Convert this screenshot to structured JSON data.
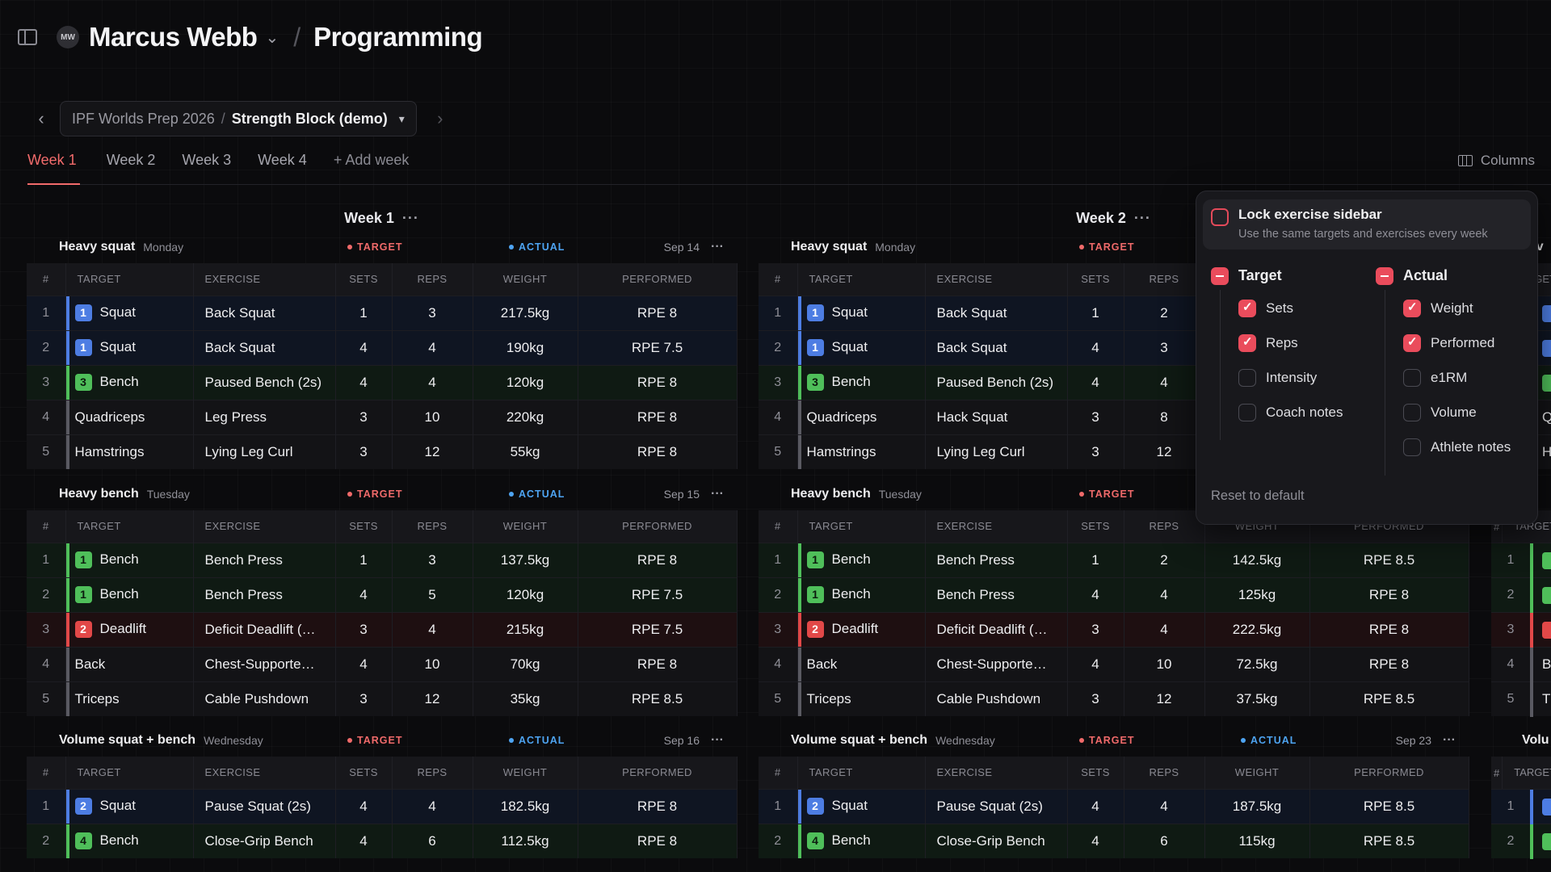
{
  "header": {
    "avatar_initials": "MW",
    "athlete_name": "Marcus Webb",
    "page_title": "Programming"
  },
  "block_selector": {
    "program": "IPF Worlds Prep 2026",
    "separator": "/",
    "block": "Strength Block (demo)"
  },
  "tabs": [
    {
      "label": "Week 1",
      "active": true
    },
    {
      "label": "Week 2",
      "active": false
    },
    {
      "label": "Week 3",
      "active": false
    },
    {
      "label": "Week 4",
      "active": false
    }
  ],
  "add_week_label": "+ Add week",
  "columns_label": "Columns",
  "table_headers": [
    "#",
    "TARGET",
    "EXERCISE",
    "SETS",
    "REPS",
    "WEIGHT",
    "PERFORMED"
  ],
  "pill_labels": {
    "target": "TARGET",
    "actual": "ACTUAL"
  },
  "weeks": [
    {
      "title": "Week 1",
      "sessions": [
        {
          "name": "Heavy squat",
          "day": "Monday",
          "date": "Sep 14",
          "rows": [
            {
              "n": "1",
              "color": "blue",
              "badge": "1",
              "target": "Squat",
              "exercise": "Back Squat",
              "sets": "1",
              "reps": "3",
              "weight": "217.5kg",
              "performed": "RPE 8"
            },
            {
              "n": "2",
              "color": "blue",
              "badge": "1",
              "target": "Squat",
              "exercise": "Back Squat",
              "sets": "4",
              "reps": "4",
              "weight": "190kg",
              "performed": "RPE 7.5"
            },
            {
              "n": "3",
              "color": "green",
              "badge": "3",
              "target": "Bench",
              "exercise": "Paused Bench (2s)",
              "sets": "4",
              "reps": "4",
              "weight": "120kg",
              "performed": "RPE 8"
            },
            {
              "n": "4",
              "color": "plain",
              "badge": "",
              "target": "Quadriceps",
              "exercise": "Leg Press",
              "sets": "3",
              "reps": "10",
              "weight": "220kg",
              "performed": "RPE 8"
            },
            {
              "n": "5",
              "color": "plain",
              "badge": "",
              "target": "Hamstrings",
              "exercise": "Lying Leg Curl",
              "sets": "3",
              "reps": "12",
              "weight": "55kg",
              "performed": "RPE 8"
            }
          ]
        },
        {
          "name": "Heavy bench",
          "day": "Tuesday",
          "date": "Sep 15",
          "rows": [
            {
              "n": "1",
              "color": "green",
              "badge": "1",
              "target": "Bench",
              "exercise": "Bench Press",
              "sets": "1",
              "reps": "3",
              "weight": "137.5kg",
              "performed": "RPE 8"
            },
            {
              "n": "2",
              "color": "green",
              "badge": "1",
              "target": "Bench",
              "exercise": "Bench Press",
              "sets": "4",
              "reps": "5",
              "weight": "120kg",
              "performed": "RPE 7.5"
            },
            {
              "n": "3",
              "color": "red",
              "badge": "2",
              "target": "Deadlift",
              "exercise": "Deficit Deadlift (…",
              "sets": "3",
              "reps": "4",
              "weight": "215kg",
              "performed": "RPE 7.5"
            },
            {
              "n": "4",
              "color": "plain",
              "badge": "",
              "target": "Back",
              "exercise": "Chest-Supporte…",
              "sets": "4",
              "reps": "10",
              "weight": "70kg",
              "performed": "RPE 8"
            },
            {
              "n": "5",
              "color": "plain",
              "badge": "",
              "target": "Triceps",
              "exercise": "Cable Pushdown",
              "sets": "3",
              "reps": "12",
              "weight": "35kg",
              "performed": "RPE 8.5"
            }
          ]
        },
        {
          "name": "Volume squat + bench",
          "day": "Wednesday",
          "date": "Sep 16",
          "rows": [
            {
              "n": "1",
              "color": "blue",
              "badge": "2",
              "target": "Squat",
              "exercise": "Pause Squat (2s)",
              "sets": "4",
              "reps": "4",
              "weight": "182.5kg",
              "performed": "RPE 8"
            },
            {
              "n": "2",
              "color": "green",
              "badge": "4",
              "target": "Bench",
              "exercise": "Close-Grip Bench",
              "sets": "4",
              "reps": "6",
              "weight": "112.5kg",
              "performed": "RPE 8"
            }
          ]
        }
      ]
    },
    {
      "title": "Week 2",
      "sessions": [
        {
          "name": "Heavy squat",
          "day": "Monday",
          "date": "",
          "rows": [
            {
              "n": "1",
              "color": "blue",
              "badge": "1",
              "target": "Squat",
              "exercise": "Back Squat",
              "sets": "1",
              "reps": "2",
              "weight": "",
              "performed": ""
            },
            {
              "n": "2",
              "color": "blue",
              "badge": "1",
              "target": "Squat",
              "exercise": "Back Squat",
              "sets": "4",
              "reps": "3",
              "weight": "",
              "performed": ""
            },
            {
              "n": "3",
              "color": "green",
              "badge": "3",
              "target": "Bench",
              "exercise": "Paused Bench (2s)",
              "sets": "4",
              "reps": "4",
              "weight": "",
              "performed": ""
            },
            {
              "n": "4",
              "color": "plain",
              "badge": "",
              "target": "Quadriceps",
              "exercise": "Hack Squat",
              "sets": "3",
              "reps": "8",
              "weight": "",
              "performed": ""
            },
            {
              "n": "5",
              "color": "plain",
              "badge": "",
              "target": "Hamstrings",
              "exercise": "Lying Leg Curl",
              "sets": "3",
              "reps": "12",
              "weight": "",
              "performed": ""
            }
          ]
        },
        {
          "name": "Heavy bench",
          "day": "Tuesday",
          "date": "",
          "rows": [
            {
              "n": "1",
              "color": "green",
              "badge": "1",
              "target": "Bench",
              "exercise": "Bench Press",
              "sets": "1",
              "reps": "2",
              "weight": "142.5kg",
              "performed": "RPE 8.5"
            },
            {
              "n": "2",
              "color": "green",
              "badge": "1",
              "target": "Bench",
              "exercise": "Bench Press",
              "sets": "4",
              "reps": "4",
              "weight": "125kg",
              "performed": "RPE 8"
            },
            {
              "n": "3",
              "color": "red",
              "badge": "2",
              "target": "Deadlift",
              "exercise": "Deficit Deadlift (…",
              "sets": "3",
              "reps": "4",
              "weight": "222.5kg",
              "performed": "RPE 8"
            },
            {
              "n": "4",
              "color": "plain",
              "badge": "",
              "target": "Back",
              "exercise": "Chest-Supporte…",
              "sets": "4",
              "reps": "10",
              "weight": "72.5kg",
              "performed": "RPE 8"
            },
            {
              "n": "5",
              "color": "plain",
              "badge": "",
              "target": "Triceps",
              "exercise": "Cable Pushdown",
              "sets": "3",
              "reps": "12",
              "weight": "37.5kg",
              "performed": "RPE 8.5"
            }
          ]
        },
        {
          "name": "Volume squat + bench",
          "day": "Wednesday",
          "date": "Sep 23",
          "rows": [
            {
              "n": "1",
              "color": "blue",
              "badge": "2",
              "target": "Squat",
              "exercise": "Pause Squat (2s)",
              "sets": "4",
              "reps": "4",
              "weight": "187.5kg",
              "performed": "RPE 8.5"
            },
            {
              "n": "2",
              "color": "green",
              "badge": "4",
              "target": "Bench",
              "exercise": "Close-Grip Bench",
              "sets": "4",
              "reps": "6",
              "weight": "115kg",
              "performed": "RPE 8.5"
            }
          ]
        }
      ]
    }
  ],
  "columns_popover": {
    "lock_title": "Lock exercise sidebar",
    "lock_desc": "Use the same targets and exercises every week",
    "lock_checked": false,
    "target_group": {
      "title": "Target",
      "options": [
        {
          "label": "Sets",
          "checked": true
        },
        {
          "label": "Reps",
          "checked": true
        },
        {
          "label": "Intensity",
          "checked": false
        },
        {
          "label": "Coach notes",
          "checked": false
        }
      ]
    },
    "actual_group": {
      "title": "Actual",
      "options": [
        {
          "label": "Weight",
          "checked": true
        },
        {
          "label": "Performed",
          "checked": true
        },
        {
          "label": "e1RM",
          "checked": false
        },
        {
          "label": "Volume",
          "checked": false
        },
        {
          "label": "Athlete notes",
          "checked": false
        }
      ]
    },
    "reset_label": "Reset to default"
  },
  "week3_peek": {
    "session_names": [
      "eav",
      "",
      "Volu"
    ],
    "row_numbers": [
      "1",
      "2",
      "3",
      "4",
      "5"
    ],
    "target_peek": [
      "Q",
      "H",
      "B",
      "T"
    ]
  },
  "colors": {
    "accent": "#f26b6b",
    "target": "#f06a6a",
    "actual": "#4ea4f2",
    "squat": "#4d7de3",
    "bench": "#4fbf5a",
    "deadlift": "#e24848"
  }
}
